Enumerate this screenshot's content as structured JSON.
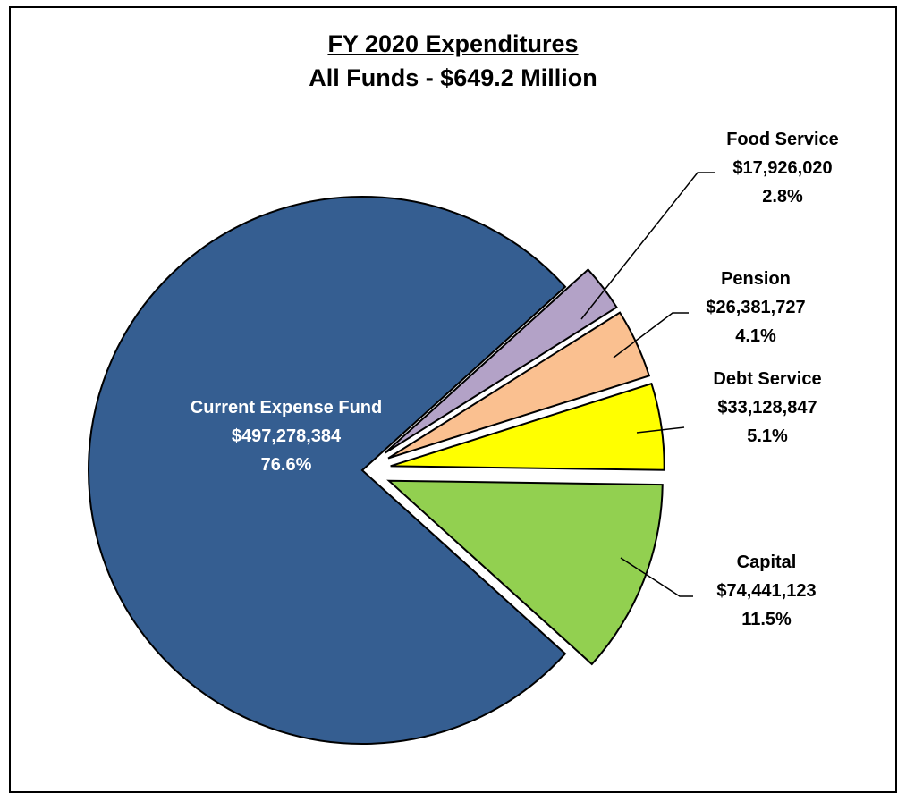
{
  "chart_data": {
    "type": "pie",
    "title": "FY 2020 Expenditures",
    "subtitle": "All Funds - $649.2 Million",
    "slices": [
      {
        "name": "Current Expense Fund",
        "amount": "$497,278,384",
        "percent": "76.6%",
        "value": 497278384,
        "color": "#355E91",
        "exploded": false
      },
      {
        "name": "Capital",
        "amount": "$74,441,123",
        "percent": "11.5%",
        "value": 74441123,
        "color": "#92D050",
        "exploded": true
      },
      {
        "name": "Debt Service",
        "amount": "$33,128,847",
        "percent": "5.1%",
        "value": 33128847,
        "color": "#FFFF00",
        "exploded": true
      },
      {
        "name": "Pension",
        "amount": "$26,381,727",
        "percent": "4.1%",
        "value": 26381727,
        "color": "#FAC090",
        "exploded": true
      },
      {
        "name": "Food Service",
        "amount": "$17,926,020",
        "percent": "2.8%",
        "value": 17926020,
        "color": "#B3A2C7",
        "exploded": true
      }
    ]
  }
}
